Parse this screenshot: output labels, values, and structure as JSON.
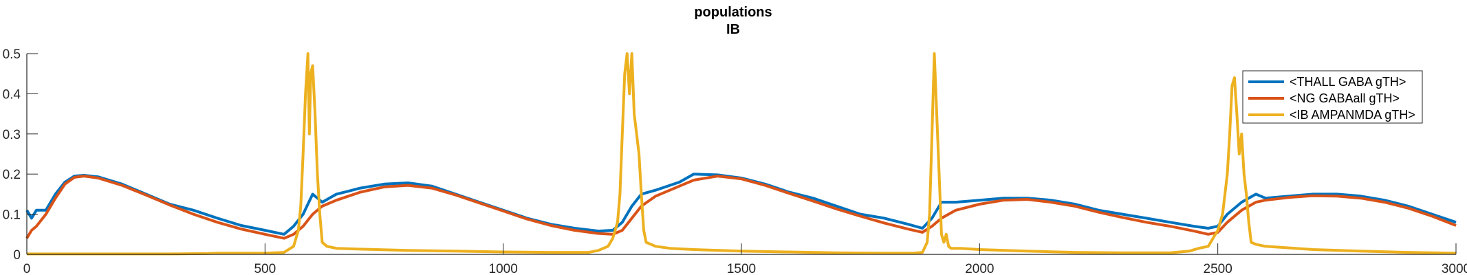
{
  "chart_data": {
    "type": "line",
    "title": "populations",
    "subtitle": "IB",
    "xlabel": "",
    "ylabel": "",
    "xlim": [
      0,
      3000
    ],
    "ylim": [
      0,
      0.5
    ],
    "xticks": [
      "0",
      "500",
      "1000",
      "1500",
      "2000",
      "2500",
      "3000"
    ],
    "yticks": [
      "0",
      "0.1",
      "0.2",
      "0.3",
      "0.4",
      "0.5"
    ],
    "grid": false,
    "legend_position": "top-right",
    "series": [
      {
        "name": "<THALL GABA gTH>",
        "color": "#0072BD",
        "x": [
          0,
          10,
          20,
          40,
          60,
          80,
          100,
          120,
          150,
          200,
          250,
          300,
          350,
          400,
          450,
          500,
          540,
          560,
          580,
          600,
          620,
          650,
          700,
          750,
          800,
          850,
          900,
          950,
          1000,
          1050,
          1100,
          1150,
          1200,
          1230,
          1250,
          1270,
          1290,
          1320,
          1370,
          1400,
          1450,
          1500,
          1550,
          1600,
          1650,
          1700,
          1750,
          1800,
          1850,
          1880,
          1900,
          1920,
          1950,
          2000,
          2050,
          2100,
          2150,
          2200,
          2250,
          2300,
          2350,
          2400,
          2450,
          2480,
          2500,
          2520,
          2550,
          2580,
          2600,
          2650,
          2700,
          2750,
          2800,
          2850,
          2900,
          2950,
          3000
        ],
        "values": [
          0.11,
          0.09,
          0.11,
          0.11,
          0.15,
          0.18,
          0.195,
          0.197,
          0.193,
          0.175,
          0.15,
          0.125,
          0.11,
          0.09,
          0.072,
          0.06,
          0.05,
          0.07,
          0.1,
          0.15,
          0.13,
          0.15,
          0.165,
          0.175,
          0.178,
          0.17,
          0.15,
          0.13,
          0.11,
          0.09,
          0.075,
          0.065,
          0.058,
          0.06,
          0.08,
          0.12,
          0.15,
          0.16,
          0.18,
          0.2,
          0.198,
          0.19,
          0.175,
          0.155,
          0.14,
          0.12,
          0.1,
          0.09,
          0.075,
          0.065,
          0.09,
          0.13,
          0.13,
          0.135,
          0.14,
          0.14,
          0.135,
          0.125,
          0.11,
          0.1,
          0.09,
          0.08,
          0.07,
          0.065,
          0.07,
          0.1,
          0.13,
          0.15,
          0.14,
          0.145,
          0.15,
          0.15,
          0.145,
          0.135,
          0.12,
          0.1,
          0.08
        ]
      },
      {
        "name": "<NG GABAall gTH>",
        "color": "#D95319",
        "x": [
          0,
          10,
          20,
          40,
          60,
          80,
          100,
          120,
          150,
          200,
          250,
          300,
          350,
          400,
          450,
          500,
          540,
          560,
          580,
          600,
          620,
          650,
          700,
          750,
          800,
          850,
          900,
          950,
          1000,
          1050,
          1100,
          1150,
          1200,
          1230,
          1250,
          1270,
          1290,
          1320,
          1370,
          1400,
          1450,
          1500,
          1550,
          1600,
          1650,
          1700,
          1750,
          1800,
          1850,
          1880,
          1900,
          1920,
          1950,
          2000,
          2050,
          2100,
          2150,
          2200,
          2250,
          2300,
          2350,
          2400,
          2450,
          2480,
          2500,
          2520,
          2550,
          2580,
          2600,
          2650,
          2700,
          2750,
          2800,
          2850,
          2900,
          2950,
          3000
        ],
        "values": [
          0.04,
          0.06,
          0.07,
          0.1,
          0.14,
          0.175,
          0.192,
          0.195,
          0.19,
          0.172,
          0.148,
          0.123,
          0.1,
          0.08,
          0.063,
          0.05,
          0.04,
          0.05,
          0.07,
          0.1,
          0.12,
          0.135,
          0.155,
          0.168,
          0.172,
          0.165,
          0.148,
          0.128,
          0.108,
          0.088,
          0.072,
          0.06,
          0.052,
          0.05,
          0.06,
          0.09,
          0.12,
          0.145,
          0.17,
          0.185,
          0.195,
          0.188,
          0.172,
          0.152,
          0.133,
          0.113,
          0.095,
          0.078,
          0.063,
          0.055,
          0.07,
          0.09,
          0.11,
          0.125,
          0.135,
          0.137,
          0.13,
          0.12,
          0.105,
          0.092,
          0.08,
          0.07,
          0.058,
          0.05,
          0.055,
          0.08,
          0.11,
          0.13,
          0.135,
          0.142,
          0.146,
          0.145,
          0.14,
          0.13,
          0.115,
          0.095,
          0.072
        ]
      },
      {
        "name": "<IB AMPANMDA gTH>",
        "color": "#EDB120",
        "x": [
          0,
          100,
          200,
          300,
          380,
          400,
          500,
          540,
          560,
          570,
          575,
          580,
          585,
          590,
          593,
          596,
          600,
          605,
          610,
          615,
          620,
          630,
          650,
          700,
          800,
          900,
          1000,
          1100,
          1180,
          1200,
          1220,
          1230,
          1240,
          1245,
          1250,
          1255,
          1260,
          1265,
          1270,
          1275,
          1280,
          1285,
          1290,
          1295,
          1300,
          1320,
          1350,
          1400,
          1500,
          1600,
          1700,
          1800,
          1860,
          1880,
          1890,
          1895,
          1900,
          1905,
          1910,
          1915,
          1920,
          1925,
          1930,
          1935,
          1940,
          1960,
          2000,
          2100,
          2200,
          2300,
          2400,
          2440,
          2460,
          2480,
          2490,
          2500,
          2510,
          2520,
          2525,
          2530,
          2535,
          2540,
          2545,
          2550,
          2555,
          2560,
          2565,
          2570,
          2580,
          2600,
          2700,
          2800,
          2900,
          3000
        ],
        "values": [
          0.001,
          0.001,
          0.001,
          0.001,
          0.002,
          0.003,
          0.003,
          0.005,
          0.02,
          0.06,
          0.12,
          0.25,
          0.4,
          0.5,
          0.3,
          0.45,
          0.47,
          0.35,
          0.2,
          0.1,
          0.03,
          0.02,
          0.015,
          0.013,
          0.01,
          0.008,
          0.006,
          0.005,
          0.005,
          0.01,
          0.02,
          0.04,
          0.08,
          0.15,
          0.3,
          0.45,
          0.5,
          0.4,
          0.5,
          0.35,
          0.3,
          0.25,
          0.15,
          0.06,
          0.03,
          0.02,
          0.015,
          0.012,
          0.008,
          0.006,
          0.004,
          0.003,
          0.003,
          0.005,
          0.03,
          0.1,
          0.3,
          0.5,
          0.35,
          0.2,
          0.05,
          0.03,
          0.05,
          0.02,
          0.015,
          0.015,
          0.012,
          0.008,
          0.005,
          0.004,
          0.004,
          0.008,
          0.015,
          0.02,
          0.04,
          0.06,
          0.1,
          0.2,
          0.3,
          0.42,
          0.44,
          0.35,
          0.25,
          0.3,
          0.2,
          0.15,
          0.08,
          0.03,
          0.025,
          0.02,
          0.012,
          0.008,
          0.005,
          0.003
        ]
      }
    ]
  }
}
